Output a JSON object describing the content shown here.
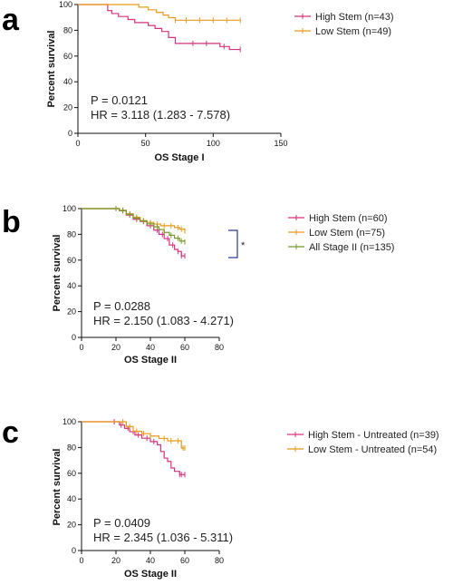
{
  "chart_data": [
    {
      "type": "line",
      "panel_label": "a",
      "xlabel": "OS Stage I",
      "ylabel": "Percent survival",
      "xlim": [
        0,
        150
      ],
      "ylim": [
        0,
        100
      ],
      "xticks": [
        0,
        50,
        100,
        150
      ],
      "yticks": [
        0,
        20,
        40,
        60,
        80,
        100
      ],
      "legend_position": "top-right",
      "series": [
        {
          "name": "High Stem (n=43)",
          "color": "#d6337e",
          "x": [
            0,
            20,
            22,
            25,
            30,
            37,
            42,
            47,
            52,
            57,
            62,
            67,
            72,
            85,
            95,
            105,
            108,
            112,
            120
          ],
          "y": [
            100,
            100,
            95.3,
            93,
            90.7,
            88.4,
            86,
            86,
            83.7,
            81.4,
            79.1,
            74.4,
            69.8,
            69.8,
            69.8,
            67.4,
            67.4,
            65.1,
            65.1
          ],
          "censor_x": [
            85,
            95,
            108,
            120
          ]
        },
        {
          "name": "Low Stem (n=49)",
          "color": "#e89a1c",
          "x": [
            0,
            32,
            45,
            52,
            58,
            63,
            67,
            72,
            80,
            90,
            100,
            110,
            120
          ],
          "y": [
            100,
            100,
            98,
            95.9,
            93.9,
            91.8,
            89.8,
            87.8,
            87.8,
            87.8,
            87.8,
            87.8,
            87.8
          ],
          "censor_x": [
            72,
            80,
            90,
            100,
            110,
            120
          ]
        }
      ],
      "annotations": [
        "P = 0.0121",
        "HR = 3.118 (1.283 - 7.578)"
      ]
    },
    {
      "type": "line",
      "panel_label": "b",
      "xlabel": "OS Stage II",
      "ylabel": "Percent survival",
      "xlim": [
        0,
        80
      ],
      "ylim": [
        0,
        100
      ],
      "xticks": [
        0,
        20,
        40,
        60,
        80
      ],
      "yticks": [
        0,
        20,
        40,
        60,
        80,
        100
      ],
      "legend_position": "right",
      "significance_marker": "*",
      "series": [
        {
          "name": "High Stem (n=60)",
          "color": "#d6337e",
          "x": [
            0,
            18,
            22,
            26,
            30,
            34,
            38,
            42,
            45,
            48,
            51,
            54,
            56,
            58,
            60
          ],
          "y": [
            100,
            100,
            98.3,
            95,
            91.7,
            90,
            86.7,
            83.3,
            80,
            76.7,
            71.7,
            68.3,
            66.7,
            63.3,
            63.3
          ],
          "censor_x": [
            20,
            24,
            28,
            32,
            36,
            40,
            44,
            47,
            50,
            53,
            56,
            58,
            60
          ]
        },
        {
          "name": "Low Stem (n=75)",
          "color": "#e89a1c",
          "x": [
            0,
            18,
            22,
            26,
            30,
            34,
            38,
            42,
            46,
            50,
            54,
            57,
            60
          ],
          "y": [
            100,
            100,
            98.7,
            96,
            93.3,
            90.7,
            89.3,
            88,
            86.7,
            86.7,
            85.3,
            84,
            82.7
          ],
          "censor_x": [
            20,
            24,
            28,
            32,
            36,
            40,
            44,
            48,
            52,
            56,
            58,
            60
          ]
        },
        {
          "name": "All Stage II (n=135)",
          "color": "#7a9a2a",
          "x": [
            0,
            18,
            22,
            26,
            30,
            34,
            38,
            42,
            45,
            48,
            51,
            54,
            57,
            60
          ],
          "y": [
            100,
            100,
            98.5,
            95.6,
            92.6,
            90.4,
            88.1,
            85.9,
            83.7,
            81.5,
            79.3,
            77,
            74.8,
            74.1
          ],
          "censor_x": [
            20,
            24,
            28,
            32,
            36,
            40,
            44,
            48,
            52,
            56,
            58,
            60
          ]
        }
      ],
      "annotations": [
        "P = 0.0288",
        "HR = 2.150 (1.083 - 4.271)"
      ]
    },
    {
      "type": "line",
      "panel_label": "c",
      "xlabel": "OS Stage II",
      "ylabel": "Percent survival",
      "xlim": [
        0,
        80
      ],
      "ylim": [
        0,
        100
      ],
      "xticks": [
        0,
        20,
        40,
        60,
        80
      ],
      "yticks": [
        0,
        20,
        40,
        60,
        80,
        100
      ],
      "legend_position": "top-right",
      "series": [
        {
          "name": "High Stem - Untreated (n=39)",
          "color": "#d6337e",
          "x": [
            0,
            20,
            22,
            25,
            28,
            31,
            35,
            40,
            44,
            46,
            48,
            50,
            52,
            54,
            57,
            60
          ],
          "y": [
            100,
            100,
            97.4,
            94.9,
            92.3,
            89.7,
            87.2,
            84.6,
            82.1,
            76.9,
            71.8,
            69.2,
            64.1,
            61.5,
            59,
            59
          ],
          "censor_x": [
            19,
            23,
            27,
            30,
            33,
            38,
            42,
            57,
            58,
            60
          ]
        },
        {
          "name": "Low Stem - Untreated (n=54)",
          "color": "#e89a1c",
          "x": [
            0,
            22,
            26,
            30,
            35,
            40,
            45,
            50,
            55,
            58,
            60
          ],
          "y": [
            100,
            100,
            96.3,
            92.6,
            90.7,
            88.9,
            87,
            85.2,
            85.2,
            79.6,
            79.6
          ],
          "censor_x": [
            24,
            28,
            32,
            36,
            40,
            48,
            52,
            56,
            59,
            60
          ]
        }
      ],
      "annotations": [
        "P = 0.0409",
        "HR = 2.345 (1.036 - 5.311)"
      ]
    }
  ]
}
